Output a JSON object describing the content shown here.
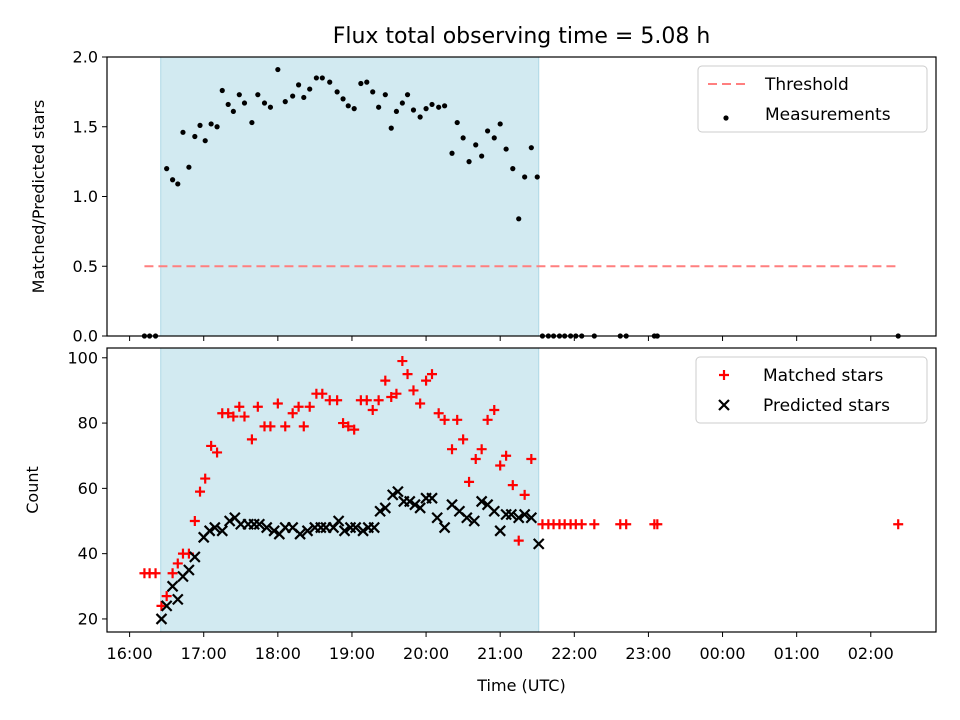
{
  "chart_data": [
    {
      "type": "scatter",
      "title": "Flux total observing time = 5.08 h",
      "xlabel": "",
      "ylabel": "Matched/Predicted stars",
      "ylim": [
        0,
        2.0
      ],
      "yticks": [
        "0.0",
        "0.5",
        "1.0",
        "1.5",
        "2.0"
      ],
      "x_axis": "time (UTC, decimal hours; values > 24 are after midnight)",
      "shaded_interval": [
        16.42,
        21.52
      ],
      "shade_color": "#add8e6",
      "legend": {
        "placement": "top-right",
        "entries": [
          "Threshold",
          "Measurements"
        ]
      },
      "series": [
        {
          "name": "Threshold",
          "kind": "line",
          "style": "dashed",
          "color": "#ff7f7f",
          "points": [
            [
              16.2,
              0.5
            ],
            [
              26.37,
              0.5
            ]
          ]
        },
        {
          "name": "Measurements",
          "kind": "scatter",
          "color": "#000000",
          "points": [
            [
              16.2,
              0
            ],
            [
              16.27,
              0
            ],
            [
              16.35,
              0
            ],
            [
              16.5,
              1.2
            ],
            [
              16.58,
              1.12
            ],
            [
              16.65,
              1.09
            ],
            [
              16.72,
              1.46
            ],
            [
              16.8,
              1.21
            ],
            [
              16.88,
              1.43
            ],
            [
              16.95,
              1.51
            ],
            [
              17.02,
              1.4
            ],
            [
              17.1,
              1.52
            ],
            [
              17.18,
              1.5
            ],
            [
              17.25,
              1.76
            ],
            [
              17.33,
              1.66
            ],
            [
              17.4,
              1.61
            ],
            [
              17.48,
              1.73
            ],
            [
              17.55,
              1.67
            ],
            [
              17.65,
              1.53
            ],
            [
              17.73,
              1.73
            ],
            [
              17.82,
              1.67
            ],
            [
              17.9,
              1.64
            ],
            [
              18.0,
              1.91
            ],
            [
              18.1,
              1.68
            ],
            [
              18.2,
              1.72
            ],
            [
              18.28,
              1.8
            ],
            [
              18.35,
              1.71
            ],
            [
              18.43,
              1.77
            ],
            [
              18.52,
              1.85
            ],
            [
              18.6,
              1.85
            ],
            [
              18.7,
              1.82
            ],
            [
              18.8,
              1.75
            ],
            [
              18.88,
              1.7
            ],
            [
              18.95,
              1.65
            ],
            [
              19.03,
              1.63
            ],
            [
              19.12,
              1.81
            ],
            [
              19.2,
              1.82
            ],
            [
              19.28,
              1.75
            ],
            [
              19.36,
              1.64
            ],
            [
              19.45,
              1.73
            ],
            [
              19.53,
              1.49
            ],
            [
              19.6,
              1.61
            ],
            [
              19.68,
              1.67
            ],
            [
              19.75,
              1.73
            ],
            [
              19.83,
              1.62
            ],
            [
              19.92,
              1.57
            ],
            [
              20.0,
              1.63
            ],
            [
              20.08,
              1.66
            ],
            [
              20.17,
              1.64
            ],
            [
              20.25,
              1.65
            ],
            [
              20.35,
              1.31
            ],
            [
              20.42,
              1.53
            ],
            [
              20.5,
              1.42
            ],
            [
              20.58,
              1.25
            ],
            [
              20.67,
              1.37
            ],
            [
              20.75,
              1.29
            ],
            [
              20.83,
              1.47
            ],
            [
              20.92,
              1.42
            ],
            [
              21.0,
              1.52
            ],
            [
              21.08,
              1.34
            ],
            [
              21.17,
              1.2
            ],
            [
              21.25,
              0.84
            ],
            [
              21.33,
              1.14
            ],
            [
              21.42,
              1.35
            ],
            [
              21.5,
              1.14
            ],
            [
              21.57,
              0
            ],
            [
              21.65,
              0
            ],
            [
              21.72,
              0
            ],
            [
              21.8,
              0
            ],
            [
              21.87,
              0
            ],
            [
              21.95,
              0
            ],
            [
              22.02,
              0
            ],
            [
              22.1,
              0
            ],
            [
              22.27,
              0
            ],
            [
              22.62,
              0
            ],
            [
              22.7,
              0
            ],
            [
              23.08,
              0
            ],
            [
              23.12,
              0
            ],
            [
              26.37,
              0
            ]
          ]
        }
      ]
    },
    {
      "type": "scatter",
      "title": "",
      "xlabel": "Time (UTC)",
      "ylabel": "Count",
      "ylim": [
        16,
        103
      ],
      "yticks": [
        "20",
        "40",
        "60",
        "80",
        "100"
      ],
      "x_axis": "time (UTC, decimal hours; values > 24 are after midnight)",
      "xticks": [
        "16:00",
        "17:00",
        "18:00",
        "19:00",
        "20:00",
        "21:00",
        "22:00",
        "23:00",
        "00:00",
        "01:00",
        "02:00"
      ],
      "shaded_interval": [
        16.42,
        21.52
      ],
      "shade_color": "#add8e6",
      "legend": {
        "placement": "top-right",
        "entries": [
          "Matched stars",
          "Predicted stars"
        ]
      },
      "series": [
        {
          "name": "Matched stars",
          "kind": "plus",
          "color": "#ff0000",
          "points": [
            [
              16.2,
              34
            ],
            [
              16.27,
              34
            ],
            [
              16.35,
              34
            ],
            [
              16.43,
              24
            ],
            [
              16.5,
              27
            ],
            [
              16.58,
              34
            ],
            [
              16.65,
              37
            ],
            [
              16.72,
              40
            ],
            [
              16.8,
              40
            ],
            [
              16.88,
              50
            ],
            [
              16.95,
              59
            ],
            [
              17.02,
              63
            ],
            [
              17.1,
              73
            ],
            [
              17.18,
              71
            ],
            [
              17.25,
              83
            ],
            [
              17.33,
              83
            ],
            [
              17.4,
              82
            ],
            [
              17.48,
              85
            ],
            [
              17.55,
              82
            ],
            [
              17.65,
              75
            ],
            [
              17.73,
              85
            ],
            [
              17.82,
              79
            ],
            [
              17.9,
              79
            ],
            [
              18.0,
              86
            ],
            [
              18.1,
              79
            ],
            [
              18.2,
              83
            ],
            [
              18.28,
              85
            ],
            [
              18.35,
              79
            ],
            [
              18.43,
              85
            ],
            [
              18.52,
              89
            ],
            [
              18.6,
              89
            ],
            [
              18.7,
              87
            ],
            [
              18.8,
              87
            ],
            [
              18.88,
              80
            ],
            [
              18.95,
              79
            ],
            [
              19.03,
              78
            ],
            [
              19.12,
              87
            ],
            [
              19.2,
              87
            ],
            [
              19.28,
              84
            ],
            [
              19.36,
              87
            ],
            [
              19.45,
              93
            ],
            [
              19.53,
              88
            ],
            [
              19.6,
              89
            ],
            [
              19.68,
              99
            ],
            [
              19.75,
              95
            ],
            [
              19.83,
              90
            ],
            [
              19.92,
              86
            ],
            [
              20.0,
              93
            ],
            [
              20.08,
              95
            ],
            [
              20.17,
              83
            ],
            [
              20.25,
              81
            ],
            [
              20.35,
              72
            ],
            [
              20.42,
              81
            ],
            [
              20.5,
              75
            ],
            [
              20.58,
              62
            ],
            [
              20.67,
              69
            ],
            [
              20.75,
              72
            ],
            [
              20.83,
              81
            ],
            [
              20.92,
              84
            ],
            [
              21.0,
              67
            ],
            [
              21.08,
              70
            ],
            [
              21.17,
              61
            ],
            [
              21.25,
              44
            ],
            [
              21.33,
              58
            ],
            [
              21.42,
              69
            ],
            [
              21.57,
              49
            ],
            [
              21.65,
              49
            ],
            [
              21.72,
              49
            ],
            [
              21.8,
              49
            ],
            [
              21.87,
              49
            ],
            [
              21.95,
              49
            ],
            [
              22.02,
              49
            ],
            [
              22.1,
              49
            ],
            [
              22.27,
              49
            ],
            [
              22.62,
              49
            ],
            [
              22.7,
              49
            ],
            [
              23.08,
              49
            ],
            [
              23.12,
              49
            ],
            [
              26.37,
              49
            ]
          ]
        },
        {
          "name": "Predicted stars",
          "kind": "cross",
          "color": "#000000",
          "points": [
            [
              16.43,
              20
            ],
            [
              16.5,
              24
            ],
            [
              16.58,
              30
            ],
            [
              16.65,
              26
            ],
            [
              16.72,
              33
            ],
            [
              16.8,
              35
            ],
            [
              16.88,
              39
            ],
            [
              17.0,
              45
            ],
            [
              17.08,
              47
            ],
            [
              17.15,
              48
            ],
            [
              17.25,
              47
            ],
            [
              17.35,
              50
            ],
            [
              17.42,
              51
            ],
            [
              17.5,
              49
            ],
            [
              17.6,
              49
            ],
            [
              17.68,
              49
            ],
            [
              17.75,
              49
            ],
            [
              17.85,
              48
            ],
            [
              17.95,
              47
            ],
            [
              18.02,
              46
            ],
            [
              18.1,
              48
            ],
            [
              18.2,
              48
            ],
            [
              18.3,
              46
            ],
            [
              18.4,
              47
            ],
            [
              18.5,
              48
            ],
            [
              18.58,
              48
            ],
            [
              18.65,
              48
            ],
            [
              18.75,
              48
            ],
            [
              18.82,
              50
            ],
            [
              18.9,
              47
            ],
            [
              18.98,
              48
            ],
            [
              19.05,
              48
            ],
            [
              19.15,
              47
            ],
            [
              19.22,
              48
            ],
            [
              19.3,
              48
            ],
            [
              19.38,
              53
            ],
            [
              19.45,
              54
            ],
            [
              19.55,
              58
            ],
            [
              19.62,
              59
            ],
            [
              19.7,
              56
            ],
            [
              19.78,
              56
            ],
            [
              19.85,
              55
            ],
            [
              19.92,
              54
            ],
            [
              20.0,
              57
            ],
            [
              20.08,
              57
            ],
            [
              20.15,
              51
            ],
            [
              20.25,
              48
            ],
            [
              20.35,
              55
            ],
            [
              20.45,
              53
            ],
            [
              20.55,
              51
            ],
            [
              20.65,
              50
            ],
            [
              20.75,
              56
            ],
            [
              20.83,
              55
            ],
            [
              20.92,
              53
            ],
            [
              21.0,
              47
            ],
            [
              21.08,
              52
            ],
            [
              21.15,
              52
            ],
            [
              21.25,
              51
            ],
            [
              21.33,
              52
            ],
            [
              21.42,
              51
            ],
            [
              21.52,
              43
            ]
          ]
        }
      ]
    }
  ]
}
